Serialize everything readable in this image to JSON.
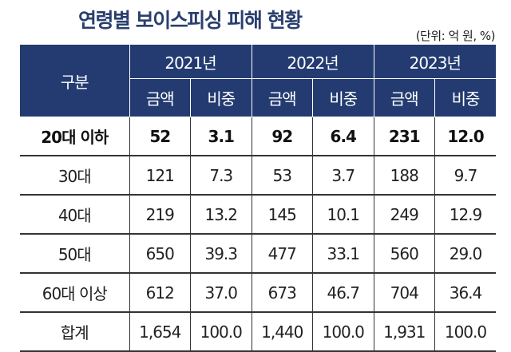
{
  "title": "연령별 보이스피싱 피해 현황",
  "unit": "(단위: 억 원, %)",
  "header": {
    "category": "구분",
    "years": [
      "2021년",
      "2022년",
      "2023년"
    ],
    "sub": [
      "금액",
      "비중",
      "금액",
      "비중",
      "금액",
      "비중"
    ]
  },
  "rows": [
    {
      "label": "20대 이하",
      "values": [
        "52",
        "3.1",
        "92",
        "6.4",
        "231",
        "12.0"
      ]
    },
    {
      "label": "30대",
      "values": [
        "121",
        "7.3",
        "53",
        "3.7",
        "188",
        "9.7"
      ]
    },
    {
      "label": "40대",
      "values": [
        "219",
        "13.2",
        "145",
        "10.1",
        "249",
        "12.9"
      ]
    },
    {
      "label": "50대",
      "values": [
        "650",
        "39.3",
        "477",
        "33.1",
        "560",
        "29.0"
      ]
    },
    {
      "label": "60대 이상",
      "values": [
        "612",
        "37.0",
        "673",
        "46.7",
        "704",
        "36.4"
      ]
    },
    {
      "label": "합계",
      "values": [
        "1,654",
        "100.0",
        "1,440",
        "100.0",
        "1,931",
        "100.0"
      ]
    }
  ]
}
